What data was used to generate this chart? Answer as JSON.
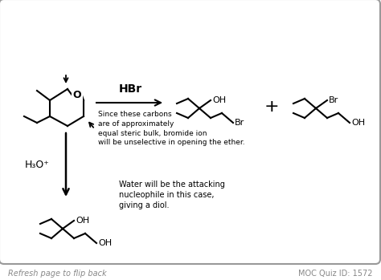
{
  "bg_color": "#ffffff",
  "border_color": "#999999",
  "gray_text_color": "#888888",
  "footer_left": "Refresh page to flip back",
  "footer_right": "MOC Quiz ID: 1572",
  "reagent_top": "HBr",
  "reagent_bottom": "H₃O⁺",
  "note_top": "Since these carbons\nare of approximately\nequal steric bulk, bromide ion\nwill be unselective in opening the ether.",
  "note_bottom": "Water will be the attacking\nnucleophile in this case,\ngiving a diol.",
  "plus_sign": "+"
}
